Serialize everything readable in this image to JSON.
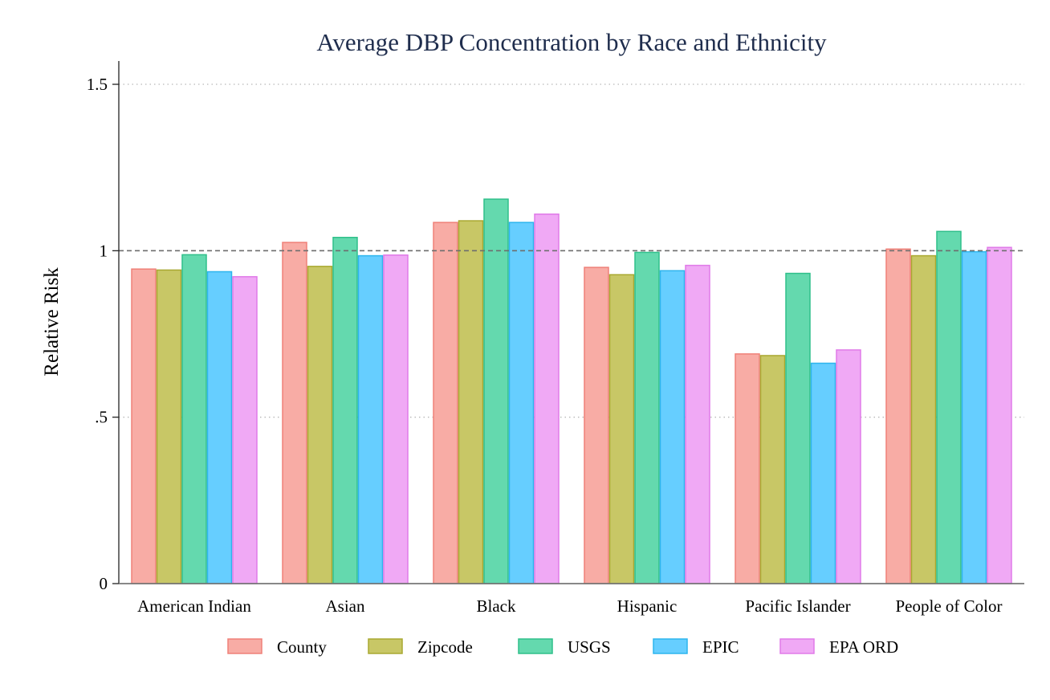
{
  "chart_data": {
    "type": "bar",
    "title": "Average DBP Concentration by Race and Ethnicity",
    "xlabel": "",
    "ylabel": "Relative Risk",
    "ylim": [
      0,
      1.57
    ],
    "yticks": [
      {
        "value": 0,
        "label": "0"
      },
      {
        "value": 0.5,
        "label": ".5"
      },
      {
        "value": 1,
        "label": "1"
      },
      {
        "value": 1.5,
        "label": "1.5"
      }
    ],
    "grid": "dotted horizontal at .5 and 1.5",
    "reference_line": {
      "value": 1,
      "style": "dashed"
    },
    "legend_position": "bottom",
    "categories": [
      "American Indian",
      "Asian",
      "Black",
      "Hispanic",
      "Pacific Islander",
      "People of Color"
    ],
    "series": [
      {
        "name": "County",
        "fill": "#f8aca5",
        "stroke": "#ef8078",
        "values": [
          0.945,
          1.025,
          1.085,
          0.95,
          0.69,
          1.005
        ]
      },
      {
        "name": "Zipcode",
        "fill": "#c8c766",
        "stroke": "#a9a830",
        "values": [
          0.942,
          0.953,
          1.09,
          0.928,
          0.685,
          0.985
        ]
      },
      {
        "name": "USGS",
        "fill": "#64d9ae",
        "stroke": "#2fbf8a",
        "values": [
          0.988,
          1.04,
          1.155,
          0.995,
          0.932,
          1.058
        ]
      },
      {
        "name": "EPIC",
        "fill": "#66ceff",
        "stroke": "#2db5ee",
        "values": [
          0.937,
          0.985,
          1.085,
          0.94,
          0.662,
          0.997
        ]
      },
      {
        "name": "EPA ORD",
        "fill": "#f0a9f5",
        "stroke": "#e07ae8",
        "values": [
          0.922,
          0.987,
          1.11,
          0.956,
          0.702,
          1.01
        ]
      }
    ]
  }
}
